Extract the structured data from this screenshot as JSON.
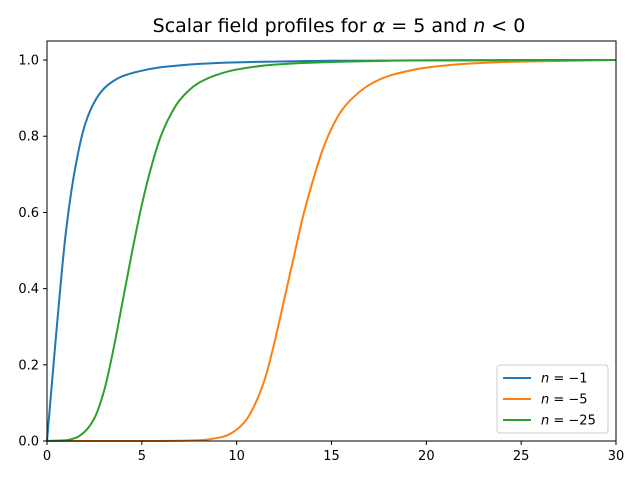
{
  "chart_data": {
    "type": "line",
    "title": "Scalar field profiles for α = 5 and n < 0",
    "title_parts": [
      "Scalar field profiles for ",
      "α",
      " = 5 and ",
      "n",
      " < 0"
    ],
    "xlabel": "",
    "ylabel": "",
    "xlim": [
      0,
      30
    ],
    "ylim": [
      0,
      1.05
    ],
    "x_ticks": [
      0,
      5,
      10,
      15,
      20,
      25,
      30
    ],
    "y_ticks": [
      0.0,
      0.2,
      0.4,
      0.6,
      0.8,
      1.0
    ],
    "x_tick_labels": [
      "0",
      "5",
      "10",
      "15",
      "20",
      "25",
      "30"
    ],
    "y_tick_labels": [
      "0.0",
      "0.2",
      "0.4",
      "0.6",
      "0.8",
      "1.0"
    ],
    "grid": false,
    "legend_position": "lower-right",
    "series": [
      {
        "name": "n = −1",
        "name_parts": [
          "n",
          " = −1"
        ],
        "color": "#1f77b4",
        "points": [
          [
            0,
            0
          ],
          [
            0.5,
            0.29
          ],
          [
            1,
            0.55
          ],
          [
            1.5,
            0.72
          ],
          [
            2,
            0.83
          ],
          [
            2.5,
            0.89
          ],
          [
            3,
            0.925
          ],
          [
            3.5,
            0.945
          ],
          [
            4,
            0.958
          ],
          [
            5,
            0.972
          ],
          [
            6,
            0.981
          ],
          [
            7,
            0.986
          ],
          [
            8,
            0.99
          ],
          [
            10,
            0.994
          ],
          [
            12,
            0.996
          ],
          [
            15,
            0.998
          ],
          [
            20,
            0.999
          ],
          [
            25,
            1.0
          ],
          [
            30,
            1.0
          ]
        ]
      },
      {
        "name": "n = −5",
        "name_parts": [
          "n",
          " = −5"
        ],
        "color": "#ff7f0e",
        "points": [
          [
            0,
            0
          ],
          [
            5,
            0
          ],
          [
            8,
            0.002
          ],
          [
            9,
            0.008
          ],
          [
            9.5,
            0.015
          ],
          [
            10,
            0.03
          ],
          [
            10.5,
            0.055
          ],
          [
            11,
            0.1
          ],
          [
            11.5,
            0.165
          ],
          [
            12,
            0.26
          ],
          [
            12.5,
            0.37
          ],
          [
            13,
            0.48
          ],
          [
            13.5,
            0.59
          ],
          [
            14,
            0.68
          ],
          [
            14.5,
            0.76
          ],
          [
            15,
            0.82
          ],
          [
            15.5,
            0.865
          ],
          [
            16,
            0.895
          ],
          [
            17,
            0.935
          ],
          [
            18,
            0.958
          ],
          [
            19,
            0.971
          ],
          [
            20,
            0.98
          ],
          [
            22,
            0.99
          ],
          [
            25,
            0.996
          ],
          [
            30,
            1.0
          ]
        ]
      },
      {
        "name": "n = −25",
        "name_parts": [
          "n",
          " = −25"
        ],
        "color": "#2ca02c",
        "points": [
          [
            0,
            0
          ],
          [
            1,
            0.002
          ],
          [
            1.5,
            0.008
          ],
          [
            2,
            0.025
          ],
          [
            2.5,
            0.06
          ],
          [
            3,
            0.13
          ],
          [
            3.5,
            0.24
          ],
          [
            4,
            0.37
          ],
          [
            4.5,
            0.5
          ],
          [
            5,
            0.62
          ],
          [
            5.5,
            0.72
          ],
          [
            6,
            0.8
          ],
          [
            6.5,
            0.855
          ],
          [
            7,
            0.895
          ],
          [
            8,
            0.94
          ],
          [
            9,
            0.962
          ],
          [
            10,
            0.975
          ],
          [
            12,
            0.988
          ],
          [
            15,
            0.995
          ],
          [
            20,
            0.999
          ],
          [
            30,
            1.0
          ]
        ]
      }
    ]
  }
}
